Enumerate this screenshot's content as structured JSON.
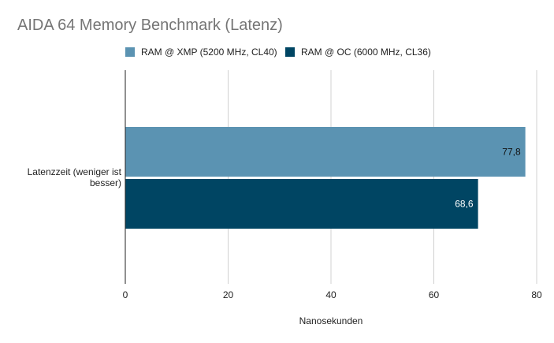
{
  "chart_data": {
    "type": "bar",
    "orientation": "horizontal",
    "title": "AIDA 64 Memory Benchmark (Latenz)",
    "categories": [
      "Latenzzeit    (weniger ist besser)"
    ],
    "series": [
      {
        "name": "RAM @ XMP (5200 MHz, CL40)",
        "values": [
          77.8
        ],
        "labels": [
          "77,8"
        ],
        "color": "#5b93b2"
      },
      {
        "name": "RAM @ OC (6000 MHz, CL36)",
        "values": [
          68.6
        ],
        "labels": [
          "68,6"
        ],
        "color": "#004563"
      }
    ],
    "xlabel": "Nanosekunden",
    "ylabel": "",
    "xlim": [
      0,
      80
    ],
    "xticks": [
      0,
      20,
      40,
      60,
      80
    ],
    "xtick_labels": [
      "0",
      "20",
      "40",
      "60",
      "80"
    ],
    "grid": true,
    "legend_position": "top"
  }
}
